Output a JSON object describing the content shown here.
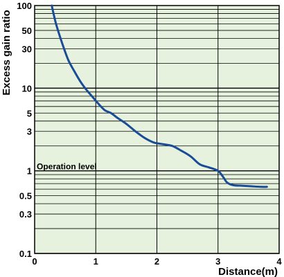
{
  "chart_data": {
    "type": "line",
    "xlabel": "Distance(m)",
    "ylabel": "Excess gain ratio",
    "xlim": [
      0,
      4
    ],
    "ylim": [
      0.1,
      100
    ],
    "yscale": "log",
    "grid": true,
    "x_ticks": [
      "0",
      "1",
      "2",
      "3",
      "4"
    ],
    "y_ticks": [
      {
        "value": 100,
        "label": "100"
      },
      {
        "value": 50,
        "label": "50"
      },
      {
        "value": 30,
        "label": "30"
      },
      {
        "value": 10,
        "label": "10"
      },
      {
        "value": 5,
        "label": "5"
      },
      {
        "value": 3,
        "label": "3"
      },
      {
        "value": 1,
        "label": "1"
      },
      {
        "value": 0.5,
        "label": "0.5"
      },
      {
        "value": 0.3,
        "label": "0.3"
      },
      {
        "value": 0.1,
        "label": "0.1"
      }
    ],
    "annotation": "Operation level",
    "annotation_value": 1,
    "colors": {
      "line": "#1a4b96",
      "plot_bg": "#e6f2de",
      "grid": "#000000"
    },
    "series": [
      {
        "x": [
          0.28,
          0.35,
          0.45,
          0.55,
          0.65,
          0.75,
          0.85,
          0.95,
          1.05,
          1.15,
          1.25,
          1.35,
          1.5,
          1.65,
          1.8,
          1.95,
          2.1,
          2.25,
          2.4,
          2.55,
          2.7,
          2.85,
          3.0,
          3.08,
          3.15,
          3.25,
          3.4,
          3.55,
          3.7,
          3.8
        ],
        "y": [
          100,
          60,
          35,
          22,
          16,
          12,
          9.5,
          7.8,
          6.4,
          5.4,
          5.0,
          4.4,
          3.7,
          3.0,
          2.5,
          2.2,
          2.1,
          2.0,
          1.75,
          1.5,
          1.2,
          1.1,
          1.0,
          0.85,
          0.72,
          0.67,
          0.66,
          0.65,
          0.64,
          0.64
        ]
      }
    ]
  }
}
